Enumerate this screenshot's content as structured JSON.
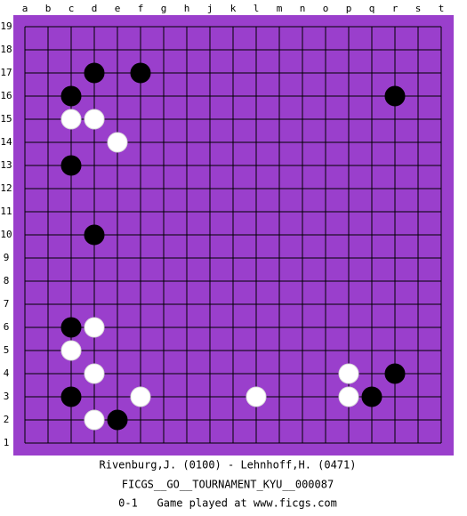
{
  "board": {
    "columns": [
      "a",
      "b",
      "c",
      "d",
      "e",
      "f",
      "g",
      "h",
      "j",
      "k",
      "l",
      "m",
      "n",
      "o",
      "p",
      "q",
      "r",
      "s",
      "t"
    ],
    "rows": [
      19,
      18,
      17,
      16,
      15,
      14,
      13,
      12,
      11,
      10,
      9,
      8,
      7,
      6,
      5,
      4,
      3,
      2,
      1
    ],
    "stones": [
      {
        "color": "black",
        "col": "d",
        "row": 17
      },
      {
        "color": "black",
        "col": "f",
        "row": 17
      },
      {
        "color": "black",
        "col": "c",
        "row": 16
      },
      {
        "color": "black",
        "col": "r",
        "row": 16
      },
      {
        "color": "white",
        "col": "c",
        "row": 15
      },
      {
        "color": "white",
        "col": "d",
        "row": 15
      },
      {
        "color": "white",
        "col": "e",
        "row": 14
      },
      {
        "color": "black",
        "col": "c",
        "row": 13
      },
      {
        "color": "black",
        "col": "d",
        "row": 10
      },
      {
        "color": "black",
        "col": "c",
        "row": 6
      },
      {
        "color": "white",
        "col": "d",
        "row": 6
      },
      {
        "color": "white",
        "col": "c",
        "row": 5
      },
      {
        "color": "white",
        "col": "d",
        "row": 4
      },
      {
        "color": "white",
        "col": "p",
        "row": 4
      },
      {
        "color": "black",
        "col": "r",
        "row": 4
      },
      {
        "color": "black",
        "col": "c",
        "row": 3
      },
      {
        "color": "white",
        "col": "f",
        "row": 3
      },
      {
        "color": "white",
        "col": "l",
        "row": 3
      },
      {
        "color": "white",
        "col": "p",
        "row": 3
      },
      {
        "color": "black",
        "col": "q",
        "row": 3
      },
      {
        "color": "white",
        "col": "d",
        "row": 2
      },
      {
        "color": "black",
        "col": "e",
        "row": 2
      }
    ]
  },
  "caption": [
    "Rivenburg,J. (0100) - Lehnhoff,H. (0471)",
    "FICGS__GO__TOURNAMENT_KYU__000087",
    "0-1   Game played at www.ficgs.com"
  ]
}
